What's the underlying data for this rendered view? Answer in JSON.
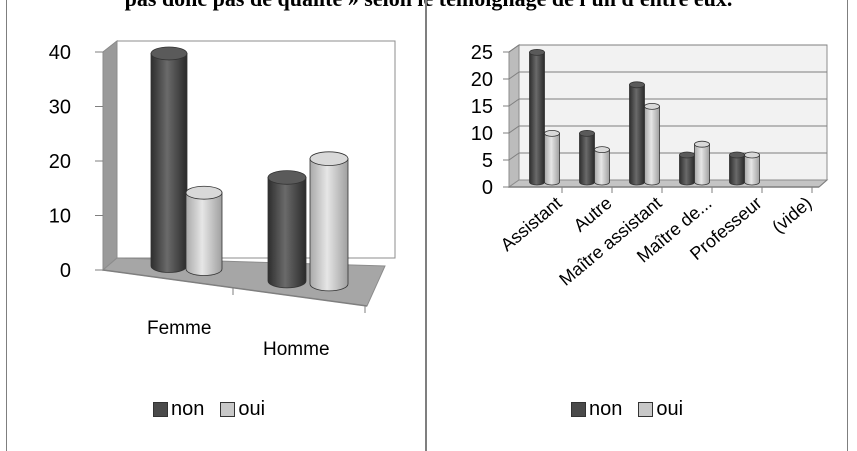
{
  "header": {
    "text": "pas donc pas de qualité » selon le témoignage de l'un d'entre eux."
  },
  "colors": {
    "non": "#4a4a4a",
    "oui": "#c8c8c8"
  },
  "chart_data": [
    {
      "type": "bar",
      "categories": [
        "Femme",
        "Homme"
      ],
      "series": [
        {
          "name": "non",
          "values": [
            39,
            19
          ]
        },
        {
          "name": "oui",
          "values": [
            14,
            23
          ]
        }
      ],
      "ylim": [
        0,
        40
      ],
      "yticks": [
        "0",
        "10",
        "20",
        "30",
        "40"
      ],
      "grid": false,
      "legend": "bottom",
      "legend_labels": [
        "non",
        "oui"
      ]
    },
    {
      "type": "bar",
      "categories": [
        "Assistant",
        "Autre",
        "Maître assistant",
        "Maître de...",
        "Professeur",
        "(vide)"
      ],
      "series": [
        {
          "name": "non",
          "values": [
            24,
            9,
            18,
            5,
            5,
            0
          ]
        },
        {
          "name": "oui",
          "values": [
            9,
            6,
            14,
            7,
            5,
            0
          ]
        }
      ],
      "ylim": [
        0,
        25
      ],
      "yticks": [
        "0",
        "5",
        "10",
        "15",
        "20",
        "25"
      ],
      "grid": true,
      "legend": "bottom",
      "legend_labels": [
        "non",
        "oui"
      ]
    }
  ]
}
